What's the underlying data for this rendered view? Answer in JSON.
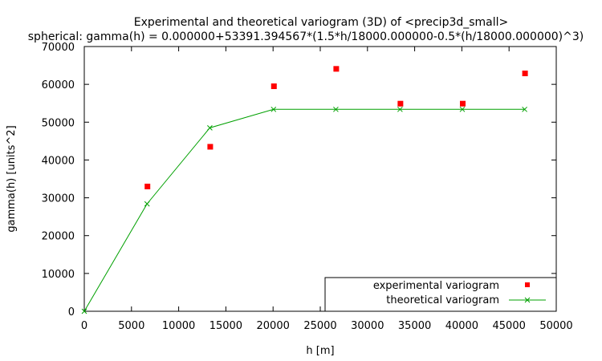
{
  "chart_data": {
    "type": "scatter",
    "title": "Experimental and theoretical variogram (3D) of <precip3d_small>",
    "subtitle": "spherical: gamma(h) = 0.000000+53391.394567*(1.5*h/18000.000000-0.5*(h/18000.000000)^3)",
    "xlabel": "h [m]",
    "ylabel": "gamma(h) [units^2]",
    "xlim": [
      0,
      50000
    ],
    "ylim": [
      0,
      70000
    ],
    "x_ticks": [
      0,
      5000,
      10000,
      15000,
      20000,
      25000,
      30000,
      35000,
      40000,
      45000,
      50000
    ],
    "y_ticks": [
      0,
      10000,
      20000,
      30000,
      40000,
      50000,
      60000,
      70000
    ],
    "grid": false,
    "legend_position": "bottom-right",
    "series": [
      {
        "name": "experimental variogram",
        "style": "points",
        "color": "#ff0000",
        "x": [
          6650,
          13300,
          20050,
          26650,
          33450,
          40050,
          46650
        ],
        "y": [
          33100,
          43600,
          59600,
          64200,
          55000,
          55000,
          63000
        ]
      },
      {
        "name": "theoretical variogram",
        "style": "linespoints",
        "color": "#00a000",
        "x": [
          0,
          6650,
          13300,
          20050,
          26650,
          33450,
          40050,
          46650
        ],
        "y": [
          0,
          28400,
          48500,
          53391,
          53391,
          53391,
          53391,
          53391
        ]
      }
    ]
  }
}
